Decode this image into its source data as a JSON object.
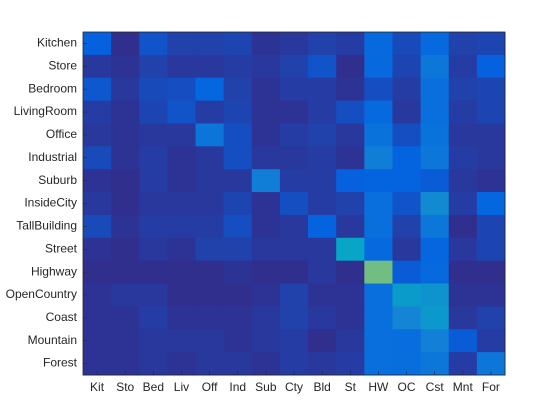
{
  "chart_data": {
    "type": "heatmap",
    "rows": [
      "Kitchen",
      "Store",
      "Bedroom",
      "LivingRoom",
      "Office",
      "Industrial",
      "Suburb",
      "InsideCity",
      "TallBuilding",
      "Street",
      "Highway",
      "OpenCountry",
      "Coast",
      "Mountain",
      "Forest"
    ],
    "columns": [
      "Kit",
      "Sto",
      "Bed",
      "Liv",
      "Off",
      "Ind",
      "Sub",
      "Cty",
      "Bld",
      "St",
      "HW",
      "OC",
      "Cst",
      "Mnt",
      "For"
    ],
    "clim": [
      0,
      1
    ],
    "colormap": "parula",
    "values": [
      [
        0.12,
        0.01,
        0.09,
        0.05,
        0.05,
        0.06,
        0.02,
        0.03,
        0.05,
        0.04,
        0.15,
        0.07,
        0.15,
        0.05,
        0.06
      ],
      [
        0.03,
        0.02,
        0.05,
        0.03,
        0.03,
        0.04,
        0.03,
        0.05,
        0.09,
        0.01,
        0.15,
        0.06,
        0.2,
        0.04,
        0.12
      ],
      [
        0.1,
        0.03,
        0.07,
        0.08,
        0.14,
        0.05,
        0.02,
        0.04,
        0.04,
        0.02,
        0.08,
        0.04,
        0.17,
        0.05,
        0.06
      ],
      [
        0.04,
        0.02,
        0.06,
        0.09,
        0.04,
        0.06,
        0.02,
        0.02,
        0.04,
        0.08,
        0.15,
        0.03,
        0.17,
        0.04,
        0.06
      ],
      [
        0.03,
        0.02,
        0.03,
        0.03,
        0.19,
        0.08,
        0.02,
        0.04,
        0.05,
        0.03,
        0.18,
        0.08,
        0.18,
        0.03,
        0.03
      ],
      [
        0.07,
        0.02,
        0.04,
        0.02,
        0.03,
        0.08,
        0.03,
        0.03,
        0.04,
        0.02,
        0.22,
        0.13,
        0.2,
        0.04,
        0.03
      ],
      [
        0.02,
        0.01,
        0.04,
        0.02,
        0.03,
        0.03,
        0.22,
        0.04,
        0.04,
        0.12,
        0.13,
        0.13,
        0.11,
        0.03,
        0.02
      ],
      [
        0.03,
        0.01,
        0.03,
        0.03,
        0.03,
        0.06,
        0.02,
        0.08,
        0.04,
        0.05,
        0.17,
        0.09,
        0.27,
        0.04,
        0.14
      ],
      [
        0.07,
        0.02,
        0.04,
        0.04,
        0.04,
        0.08,
        0.02,
        0.03,
        0.13,
        0.03,
        0.17,
        0.05,
        0.2,
        0.01,
        0.06
      ],
      [
        0.02,
        0.01,
        0.03,
        0.02,
        0.05,
        0.05,
        0.03,
        0.03,
        0.03,
        0.37,
        0.15,
        0.03,
        0.14,
        0.03,
        0.06
      ],
      [
        0.01,
        0.01,
        0.01,
        0.01,
        0.01,
        0.02,
        0.01,
        0.01,
        0.03,
        0.01,
        0.58,
        0.11,
        0.15,
        0.01,
        0.01
      ],
      [
        0.02,
        0.03,
        0.03,
        0.01,
        0.01,
        0.01,
        0.02,
        0.05,
        0.02,
        0.02,
        0.17,
        0.33,
        0.3,
        0.02,
        0.02
      ],
      [
        0.02,
        0.02,
        0.04,
        0.02,
        0.02,
        0.02,
        0.03,
        0.05,
        0.03,
        0.02,
        0.17,
        0.25,
        0.32,
        0.03,
        0.05
      ],
      [
        0.02,
        0.02,
        0.03,
        0.03,
        0.03,
        0.02,
        0.03,
        0.04,
        0.01,
        0.03,
        0.17,
        0.16,
        0.23,
        0.11,
        0.04
      ],
      [
        0.02,
        0.02,
        0.03,
        0.02,
        0.03,
        0.03,
        0.02,
        0.04,
        0.03,
        0.04,
        0.17,
        0.16,
        0.2,
        0.04,
        0.2
      ]
    ]
  }
}
